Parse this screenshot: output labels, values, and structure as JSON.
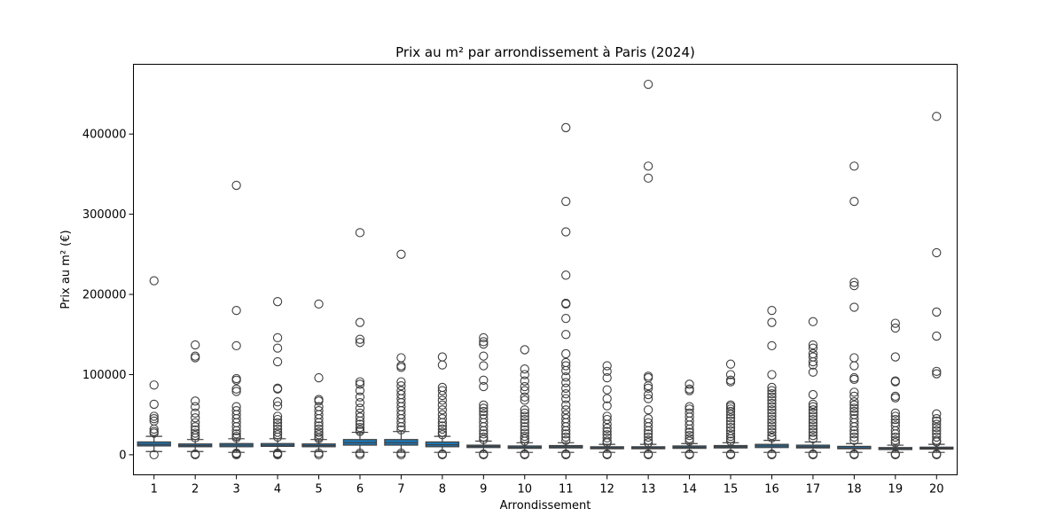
{
  "chart_data": {
    "type": "boxplot",
    "title": "Prix au m² par arrondissement à Paris (2024)",
    "xlabel": "Arrondissement",
    "ylabel": "Prix au m² (€)",
    "ylim": [
      -25000,
      487000
    ],
    "yticks": [
      0,
      100000,
      200000,
      300000,
      400000
    ],
    "ytick_labels": [
      "0",
      "100000",
      "200000",
      "300000",
      "400000"
    ],
    "grid": false,
    "box_color": "#1f77b4",
    "categories": [
      "1",
      "2",
      "3",
      "4",
      "5",
      "6",
      "7",
      "8",
      "9",
      "10",
      "11",
      "12",
      "13",
      "14",
      "15",
      "16",
      "17",
      "18",
      "19",
      "20"
    ],
    "boxes": [
      {
        "q1": 11000,
        "median": 13000,
        "q3": 16000,
        "whisker_low": 4000,
        "whisker_high": 23000
      },
      {
        "q1": 10000,
        "median": 11500,
        "q3": 13500,
        "whisker_low": 4000,
        "whisker_high": 19000
      },
      {
        "q1": 10000,
        "median": 12000,
        "q3": 14000,
        "whisker_low": 3000,
        "whisker_high": 20000
      },
      {
        "q1": 10500,
        "median": 12000,
        "q3": 14000,
        "whisker_low": 4000,
        "whisker_high": 20000
      },
      {
        "q1": 10000,
        "median": 11500,
        "q3": 13500,
        "whisker_low": 4000,
        "whisker_high": 19000
      },
      {
        "q1": 12000,
        "median": 15000,
        "q3": 19000,
        "whisker_low": 3000,
        "whisker_high": 28000
      },
      {
        "q1": 12000,
        "median": 15000,
        "q3": 19000,
        "whisker_low": 3000,
        "whisker_high": 29000
      },
      {
        "q1": 10000,
        "median": 12500,
        "q3": 16000,
        "whisker_low": 3000,
        "whisker_high": 23000
      },
      {
        "q1": 9000,
        "median": 10500,
        "q3": 12000,
        "whisker_low": 3000,
        "whisker_high": 17000
      },
      {
        "q1": 8000,
        "median": 9500,
        "q3": 11000,
        "whisker_low": 3000,
        "whisker_high": 15000
      },
      {
        "q1": 8500,
        "median": 10000,
        "q3": 11500,
        "whisker_low": 3000,
        "whisker_high": 15000
      },
      {
        "q1": 7500,
        "median": 8500,
        "q3": 10000,
        "whisker_low": 3000,
        "whisker_high": 13000
      },
      {
        "q1": 7500,
        "median": 8500,
        "q3": 10000,
        "whisker_low": 3000,
        "whisker_high": 13000
      },
      {
        "q1": 8000,
        "median": 9500,
        "q3": 11000,
        "whisker_low": 3000,
        "whisker_high": 14000
      },
      {
        "q1": 8500,
        "median": 10000,
        "q3": 11500,
        "whisker_low": 3000,
        "whisker_high": 15000
      },
      {
        "q1": 9000,
        "median": 11000,
        "q3": 13000,
        "whisker_low": 3000,
        "whisker_high": 18000
      },
      {
        "q1": 8500,
        "median": 10000,
        "q3": 12000,
        "whisker_low": 3000,
        "whisker_high": 16000
      },
      {
        "q1": 7500,
        "median": 8500,
        "q3": 10500,
        "whisker_low": 3000,
        "whisker_high": 14000
      },
      {
        "q1": 6500,
        "median": 7500,
        "q3": 9000,
        "whisker_low": 3000,
        "whisker_high": 12000
      },
      {
        "q1": 7000,
        "median": 8000,
        "q3": 9500,
        "whisker_low": 3000,
        "whisker_high": 13000
      }
    ],
    "outliers": [
      [
        217000,
        87000,
        63000,
        48000,
        45000,
        42000,
        32000,
        29000,
        27000,
        0
      ],
      [
        137000,
        123000,
        121000,
        67000,
        60000,
        52000,
        46000,
        40000,
        35000,
        31000,
        27000,
        24000,
        21000,
        1000,
        0
      ],
      [
        336000,
        180000,
        136000,
        95000,
        93000,
        82000,
        79000,
        60000,
        55000,
        50000,
        45000,
        40000,
        35000,
        30000,
        26000,
        23000,
        21000,
        2000,
        1000,
        0
      ],
      [
        191000,
        146000,
        133000,
        116000,
        83000,
        82000,
        66000,
        61000,
        48000,
        44000,
        40000,
        36000,
        32000,
        28000,
        25000,
        22000,
        2000,
        1000,
        0
      ],
      [
        188000,
        96000,
        69000,
        67000,
        60000,
        55000,
        50000,
        45000,
        40000,
        36000,
        32000,
        28000,
        25000,
        22000,
        20000,
        2000,
        0
      ],
      [
        277000,
        165000,
        144000,
        140000,
        91000,
        88000,
        80000,
        72000,
        65000,
        58000,
        52000,
        47000,
        42000,
        38000,
        34000,
        31000,
        29000,
        2000,
        0
      ],
      [
        250000,
        121000,
        111000,
        109000,
        91000,
        86000,
        80000,
        75000,
        70000,
        65000,
        60000,
        55000,
        50000,
        45000,
        40000,
        35000,
        31000,
        2000,
        0
      ],
      [
        122000,
        112000,
        84000,
        80000,
        74000,
        68000,
        62000,
        56000,
        50000,
        45000,
        40000,
        36000,
        32000,
        28000,
        25000,
        1000,
        0
      ],
      [
        146000,
        141000,
        138000,
        123000,
        111000,
        93000,
        85000,
        62000,
        58000,
        54000,
        50000,
        45000,
        40000,
        35000,
        30000,
        26000,
        22000,
        19000,
        1000,
        0
      ],
      [
        131000,
        107000,
        100000,
        92000,
        85000,
        80000,
        72000,
        68000,
        56000,
        52000,
        48000,
        44000,
        40000,
        35000,
        31000,
        27000,
        23000,
        20000,
        17000,
        1000,
        0
      ],
      [
        408000,
        316000,
        278000,
        224000,
        189000,
        188000,
        170000,
        150000,
        126000,
        115000,
        111000,
        105000,
        97000,
        90000,
        83000,
        76000,
        70000,
        62000,
        56000,
        50000,
        45000,
        40000,
        35000,
        30000,
        26000,
        22000,
        18000,
        1000,
        0
      ],
      [
        111000,
        104000,
        96000,
        81000,
        70000,
        61000,
        48000,
        44000,
        38000,
        33000,
        29000,
        25000,
        21000,
        17000,
        15000,
        1000,
        0
      ],
      [
        462000,
        360000,
        345000,
        98000,
        96000,
        86000,
        83000,
        75000,
        70000,
        56000,
        45000,
        40000,
        35000,
        30000,
        26000,
        22000,
        18000,
        15000,
        1000,
        0
      ],
      [
        88000,
        82000,
        80000,
        60000,
        57000,
        52000,
        47000,
        42000,
        37000,
        32000,
        28000,
        24000,
        20000,
        17000,
        1000,
        0
      ],
      [
        113000,
        100000,
        93000,
        91000,
        62000,
        60000,
        57000,
        54000,
        50000,
        46000,
        42000,
        38000,
        34000,
        30000,
        26000,
        23000,
        20000,
        17000,
        1000,
        0
      ],
      [
        180000,
        165000,
        136000,
        100000,
        84000,
        80000,
        76000,
        72000,
        68000,
        64000,
        60000,
        56000,
        52000,
        48000,
        44000,
        40000,
        36000,
        32000,
        28000,
        24000,
        21000,
        1000,
        0
      ],
      [
        166000,
        137000,
        133000,
        126000,
        122000,
        116000,
        112000,
        103000,
        75000,
        63000,
        60000,
        56000,
        52000,
        48000,
        44000,
        40000,
        36000,
        32000,
        28000,
        24000,
        20000,
        1000,
        0
      ],
      [
        360000,
        316000,
        215000,
        211000,
        184000,
        121000,
        111000,
        96000,
        94000,
        78000,
        73000,
        66000,
        62000,
        58000,
        54000,
        50000,
        45000,
        40000,
        35000,
        30000,
        26000,
        22000,
        18000,
        1000,
        0
      ],
      [
        164000,
        158000,
        122000,
        92000,
        91000,
        73000,
        71000,
        52000,
        48000,
        44000,
        40000,
        36000,
        30000,
        26000,
        22000,
        18000,
        15000,
        1000,
        0
      ],
      [
        422000,
        252000,
        178000,
        148000,
        104000,
        101000,
        51000,
        45000,
        42000,
        38000,
        34000,
        30000,
        26000,
        22000,
        18000,
        16000,
        1000,
        0
      ]
    ]
  }
}
